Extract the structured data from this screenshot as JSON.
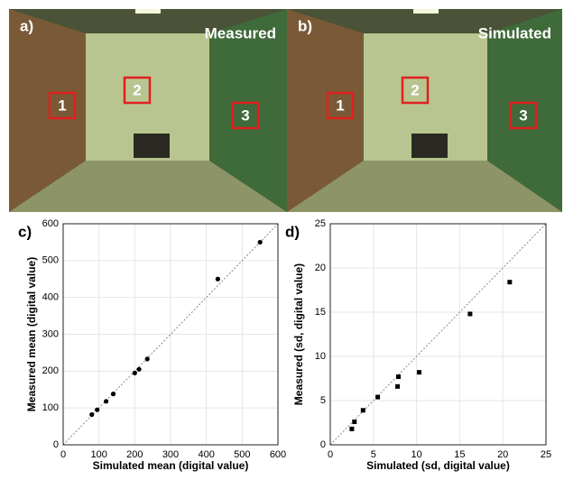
{
  "panels": [
    {
      "label": "a)",
      "caption": "Measured",
      "boxes": [
        "1",
        "2",
        "3"
      ]
    },
    {
      "label": "b)",
      "caption": "Simulated",
      "boxes": [
        "1",
        "2",
        "3"
      ]
    }
  ],
  "chart_data": [
    {
      "type": "scatter",
      "label": "c)",
      "marker": "circle",
      "color": "#000000",
      "grid": true,
      "x_label": "Simulated mean (digital value)",
      "y_label": "Measured mean (digital value)",
      "x": [
        80,
        95,
        120,
        140,
        200,
        212,
        235,
        432,
        550
      ],
      "values": [
        82,
        95,
        118,
        138,
        195,
        205,
        233,
        450,
        550
      ],
      "xlim": [
        0,
        600
      ],
      "xticks": [
        0,
        100,
        200,
        300,
        400,
        500,
        600
      ],
      "ylim": [
        0,
        600
      ],
      "yticks": [
        0,
        100,
        200,
        300,
        400,
        500,
        600
      ]
    },
    {
      "type": "scatter",
      "label": "d)",
      "marker": "square",
      "color": "#000000",
      "grid": true,
      "x_label": "Simulated (sd, digital value)",
      "y_label": "Measured (sd, digital value)",
      "x": [
        2.5,
        2.8,
        3.8,
        5.5,
        7.8,
        7.9,
        10.3,
        16.2,
        20.8
      ],
      "values": [
        1.8,
        2.6,
        3.9,
        5.4,
        6.6,
        7.7,
        8.2,
        14.8,
        18.4
      ],
      "xlim": [
        0,
        25
      ],
      "xticks": [
        0,
        5,
        10,
        15,
        20,
        25
      ],
      "ylim": [
        0,
        25
      ],
      "yticks": [
        0,
        5,
        10,
        15,
        20,
        25
      ]
    }
  ]
}
